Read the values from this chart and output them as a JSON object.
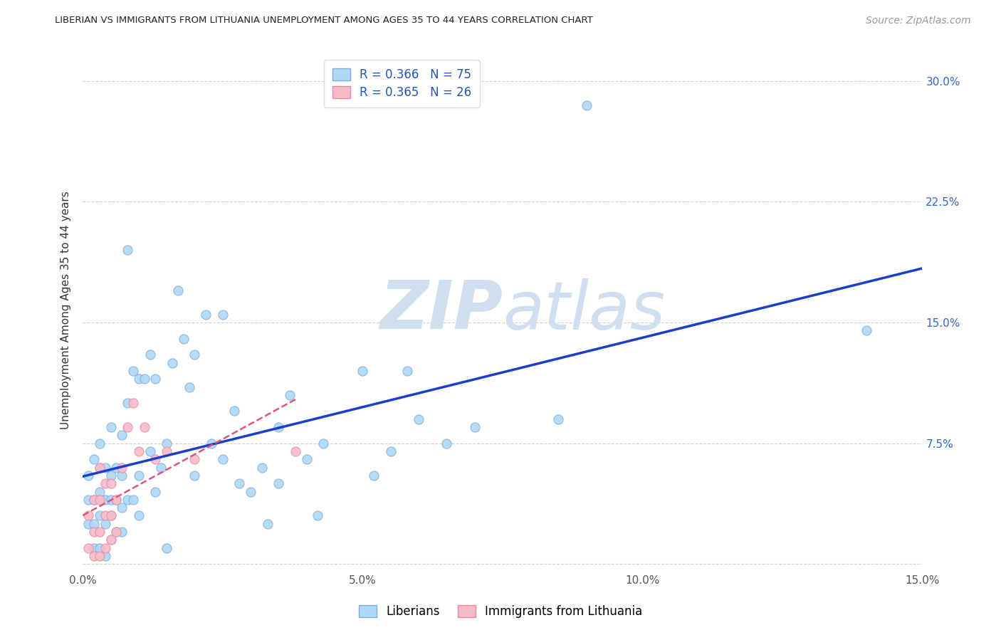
{
  "title": "LIBERIAN VS IMMIGRANTS FROM LITHUANIA UNEMPLOYMENT AMONG AGES 35 TO 44 YEARS CORRELATION CHART",
  "source": "Source: ZipAtlas.com",
  "ylabel": "Unemployment Among Ages 35 to 44 years",
  "xlim": [
    0.0,
    0.15
  ],
  "ylim": [
    -0.005,
    0.32
  ],
  "xticks": [
    0.0,
    0.025,
    0.05,
    0.075,
    0.1,
    0.125,
    0.15
  ],
  "xtick_labels": [
    "0.0%",
    "",
    "5.0%",
    "",
    "10.0%",
    "",
    "15.0%"
  ],
  "yticks": [
    0.0,
    0.075,
    0.15,
    0.225,
    0.3
  ],
  "ytick_labels_right": [
    "",
    "7.5%",
    "15.0%",
    "22.5%",
    "30.0%"
  ],
  "grid_color": "#cccccc",
  "background_color": "#ffffff",
  "liberian_color": "#add8f7",
  "lithanian_color": "#f9bbc8",
  "liberian_edge_color": "#7aaddc",
  "lithanian_edge_color": "#e888a0",
  "line_blue_color": "#1a3fcc",
  "line_pink_color": "#e05575",
  "watermark_color": "#d0dff0",
  "legend_label1": "R = 0.366   N = 75",
  "legend_label2": "R = 0.365   N = 26",
  "legend_bottom_label1": "Liberians",
  "legend_bottom_label2": "Immigrants from Lithuania",
  "liberian_x": [
    0.001,
    0.001,
    0.001,
    0.002,
    0.002,
    0.002,
    0.002,
    0.003,
    0.003,
    0.003,
    0.003,
    0.003,
    0.004,
    0.004,
    0.004,
    0.004,
    0.005,
    0.005,
    0.005,
    0.005,
    0.005,
    0.006,
    0.006,
    0.006,
    0.007,
    0.007,
    0.007,
    0.007,
    0.008,
    0.008,
    0.008,
    0.009,
    0.009,
    0.01,
    0.01,
    0.01,
    0.011,
    0.012,
    0.012,
    0.013,
    0.013,
    0.014,
    0.015,
    0.015,
    0.016,
    0.017,
    0.018,
    0.019,
    0.02,
    0.02,
    0.022,
    0.023,
    0.025,
    0.025,
    0.027,
    0.028,
    0.03,
    0.032,
    0.033,
    0.035,
    0.035,
    0.037,
    0.04,
    0.042,
    0.043,
    0.05,
    0.052,
    0.055,
    0.058,
    0.06,
    0.065,
    0.07,
    0.085,
    0.09,
    0.14
  ],
  "liberian_y": [
    0.025,
    0.04,
    0.055,
    0.01,
    0.025,
    0.04,
    0.065,
    0.01,
    0.03,
    0.045,
    0.06,
    0.075,
    0.005,
    0.025,
    0.04,
    0.06,
    0.015,
    0.03,
    0.04,
    0.055,
    0.085,
    0.02,
    0.04,
    0.06,
    0.02,
    0.035,
    0.055,
    0.08,
    0.04,
    0.1,
    0.195,
    0.04,
    0.12,
    0.03,
    0.055,
    0.115,
    0.115,
    0.13,
    0.07,
    0.045,
    0.115,
    0.06,
    0.01,
    0.075,
    0.125,
    0.17,
    0.14,
    0.11,
    0.055,
    0.13,
    0.155,
    0.075,
    0.065,
    0.155,
    0.095,
    0.05,
    0.045,
    0.06,
    0.025,
    0.05,
    0.085,
    0.105,
    0.065,
    0.03,
    0.075,
    0.12,
    0.055,
    0.07,
    0.12,
    0.09,
    0.075,
    0.085,
    0.09,
    0.285,
    0.145
  ],
  "lithanian_x": [
    0.001,
    0.001,
    0.002,
    0.002,
    0.002,
    0.003,
    0.003,
    0.003,
    0.003,
    0.004,
    0.004,
    0.004,
    0.005,
    0.005,
    0.005,
    0.006,
    0.006,
    0.007,
    0.008,
    0.009,
    0.01,
    0.011,
    0.013,
    0.015,
    0.02,
    0.038
  ],
  "lithanian_y": [
    0.01,
    0.03,
    0.005,
    0.02,
    0.04,
    0.005,
    0.02,
    0.04,
    0.06,
    0.01,
    0.03,
    0.05,
    0.015,
    0.03,
    0.05,
    0.02,
    0.04,
    0.06,
    0.085,
    0.1,
    0.07,
    0.085,
    0.065,
    0.07,
    0.065,
    0.07
  ]
}
